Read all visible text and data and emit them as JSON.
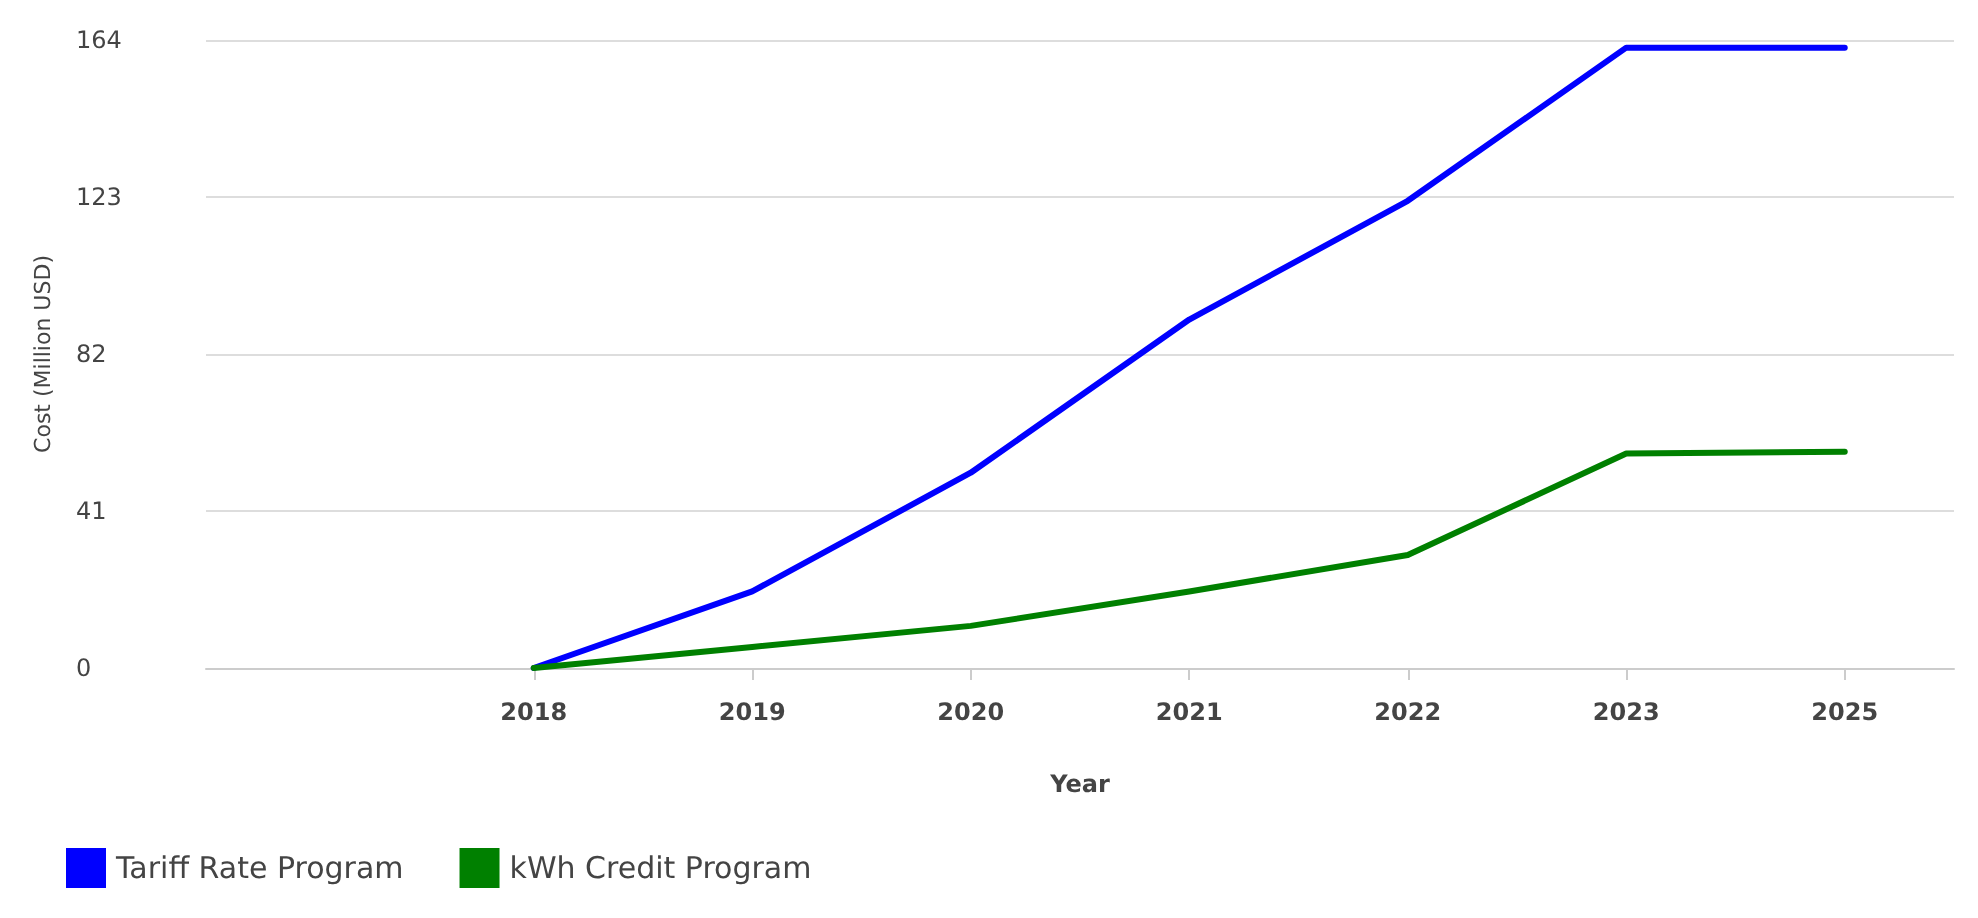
{
  "chart_data": {
    "type": "line",
    "xlabel": "Year",
    "ylabel": "Cost (Million USD)",
    "categories": [
      null,
      "2018",
      "2019",
      "2020",
      "2021",
      "2022",
      "2023",
      "2025"
    ],
    "series": [
      {
        "name": "Tariff Rate Program",
        "color": "#0000ff",
        "values": [
          null,
          0,
          20,
          51,
          91,
          122,
          162,
          162
        ]
      },
      {
        "name": "kWh Credit Program",
        "color": "#008000",
        "values": [
          null,
          0,
          5.5,
          11,
          20,
          29.5,
          56,
          56.5
        ]
      }
    ],
    "ylim": [
      0,
      164
    ],
    "yticks": [
      0,
      41,
      82,
      123,
      164
    ],
    "grid": "y",
    "legend": "bottom left",
    "marker": "none",
    "line_style": "solid"
  }
}
